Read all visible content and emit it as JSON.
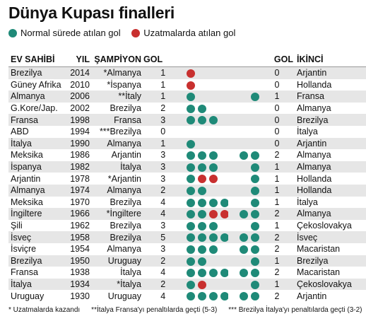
{
  "title": "Dünya Kupası finalleri",
  "colors": {
    "normal": "#1f8a78",
    "extra": "#c8302f"
  },
  "legend": {
    "normal": "Normal sürede atılan gol",
    "extra": "Uzatmalarda atılan gol"
  },
  "headers": {
    "host": "EV SAHİBİ",
    "year": "YIL",
    "champion": "ŞAMPİYON",
    "home_goals": "GOL",
    "away_goals": "GOL",
    "runner_up": "İKİNCİ"
  },
  "chart_data": {
    "type": "table",
    "title": "Dünya Kupası finalleri",
    "legend": [
      "Normal sürede atılan gol",
      "Uzatmalarda atılan gol"
    ],
    "rows": [
      {
        "host": "Brezilya",
        "year": "2014",
        "champion": "*Almanya",
        "champion_goals": 1,
        "champion_normal": 0,
        "champion_extra": 1,
        "runner_up_goals": 0,
        "runner_up_normal": 0,
        "runner_up_extra": 0,
        "runner_up": "Arjantin"
      },
      {
        "host": "Güney Afrika",
        "year": "2010",
        "champion": "*İspanya",
        "champion_goals": 1,
        "champion_normal": 0,
        "champion_extra": 1,
        "runner_up_goals": 0,
        "runner_up_normal": 0,
        "runner_up_extra": 0,
        "runner_up": "Hollanda"
      },
      {
        "host": "Almanya",
        "year": "2006",
        "champion": "**İtaly",
        "champion_goals": 1,
        "champion_normal": 1,
        "champion_extra": 0,
        "runner_up_goals": 1,
        "runner_up_normal": 1,
        "runner_up_extra": 0,
        "runner_up": "Fransa"
      },
      {
        "host": "G.Kore/Jap.",
        "year": "2002",
        "champion": "Brezilya",
        "champion_goals": 2,
        "champion_normal": 2,
        "champion_extra": 0,
        "runner_up_goals": 0,
        "runner_up_normal": 0,
        "runner_up_extra": 0,
        "runner_up": "Almanya"
      },
      {
        "host": "Fransa",
        "year": "1998",
        "champion": "Fransa",
        "champion_goals": 3,
        "champion_normal": 3,
        "champion_extra": 0,
        "runner_up_goals": 0,
        "runner_up_normal": 0,
        "runner_up_extra": 0,
        "runner_up": "Brezilya"
      },
      {
        "host": "ABD",
        "year": "1994",
        "champion": "***Brezilya",
        "champion_goals": 0,
        "champion_normal": 0,
        "champion_extra": 0,
        "runner_up_goals": 0,
        "runner_up_normal": 0,
        "runner_up_extra": 0,
        "runner_up": "İtalya"
      },
      {
        "host": "İtalya",
        "year": "1990",
        "champion": "Almanya",
        "champion_goals": 1,
        "champion_normal": 1,
        "champion_extra": 0,
        "runner_up_goals": 0,
        "runner_up_normal": 0,
        "runner_up_extra": 0,
        "runner_up": "Arjantin"
      },
      {
        "host": "Meksika",
        "year": "1986",
        "champion": "Arjantin",
        "champion_goals": 3,
        "champion_normal": 3,
        "champion_extra": 0,
        "runner_up_goals": 2,
        "runner_up_normal": 2,
        "runner_up_extra": 0,
        "runner_up": "Almanya"
      },
      {
        "host": "İspanya",
        "year": "1982",
        "champion": "İtalya",
        "champion_goals": 3,
        "champion_normal": 3,
        "champion_extra": 0,
        "runner_up_goals": 1,
        "runner_up_normal": 1,
        "runner_up_extra": 0,
        "runner_up": "Almanya"
      },
      {
        "host": "Arjantin",
        "year": "1978",
        "champion": "*Arjantin",
        "champion_goals": 3,
        "champion_normal": 1,
        "champion_extra": 2,
        "runner_up_goals": 1,
        "runner_up_normal": 1,
        "runner_up_extra": 0,
        "runner_up": "Hollanda"
      },
      {
        "host": "Almanya",
        "year": "1974",
        "champion": "Almanya",
        "champion_goals": 2,
        "champion_normal": 2,
        "champion_extra": 0,
        "runner_up_goals": 1,
        "runner_up_normal": 1,
        "runner_up_extra": 0,
        "runner_up": "Hollanda"
      },
      {
        "host": "Meksika",
        "year": "1970",
        "champion": "Brezilya",
        "champion_goals": 4,
        "champion_normal": 4,
        "champion_extra": 0,
        "runner_up_goals": 1,
        "runner_up_normal": 1,
        "runner_up_extra": 0,
        "runner_up": "İtalya"
      },
      {
        "host": "İngiltere",
        "year": "1966",
        "champion": "*İngiltere",
        "champion_goals": 4,
        "champion_normal": 2,
        "champion_extra": 2,
        "runner_up_goals": 2,
        "runner_up_normal": 2,
        "runner_up_extra": 0,
        "runner_up": "Almanya"
      },
      {
        "host": "Şili",
        "year": "1962",
        "champion": "Brezilya",
        "champion_goals": 3,
        "champion_normal": 3,
        "champion_extra": 0,
        "runner_up_goals": 1,
        "runner_up_normal": 1,
        "runner_up_extra": 0,
        "runner_up": "Çekoslovakya"
      },
      {
        "host": "İsveç",
        "year": "1958",
        "champion": "Brezilya",
        "champion_goals": 5,
        "champion_normal": 5,
        "champion_extra": 0,
        "runner_up_goals": 2,
        "runner_up_normal": 2,
        "runner_up_extra": 0,
        "runner_up": "İsveç"
      },
      {
        "host": "İsviçre",
        "year": "1954",
        "champion": "Almanya",
        "champion_goals": 3,
        "champion_normal": 3,
        "champion_extra": 0,
        "runner_up_goals": 2,
        "runner_up_normal": 2,
        "runner_up_extra": 0,
        "runner_up": "Macaristan"
      },
      {
        "host": "Brezilya",
        "year": "1950",
        "champion": "Uruguay",
        "champion_goals": 2,
        "champion_normal": 2,
        "champion_extra": 0,
        "runner_up_goals": 1,
        "runner_up_normal": 1,
        "runner_up_extra": 0,
        "runner_up": "Brezilya"
      },
      {
        "host": "Fransa",
        "year": "1938",
        "champion": "İtalya",
        "champion_goals": 4,
        "champion_normal": 4,
        "champion_extra": 0,
        "runner_up_goals": 2,
        "runner_up_normal": 2,
        "runner_up_extra": 0,
        "runner_up": "Macaristan"
      },
      {
        "host": "İtalya",
        "year": "1934",
        "champion": "*İtalya",
        "champion_goals": 2,
        "champion_normal": 1,
        "champion_extra": 1,
        "runner_up_goals": 1,
        "runner_up_normal": 1,
        "runner_up_extra": 0,
        "runner_up": "Çekoslovakya"
      },
      {
        "host": "Uruguay",
        "year": "1930",
        "champion": "Uruguay",
        "champion_goals": 4,
        "champion_normal": 4,
        "champion_extra": 0,
        "runner_up_goals": 2,
        "runner_up_normal": 2,
        "runner_up_extra": 0,
        "runner_up": "Arjantin"
      }
    ]
  },
  "footnotes": [
    "* Uzatmalarda kazandı",
    "**İtalya Fransa'yı penaltılarda geçti (5-3)",
    "*** Brezilya İtalya'yı penaltılarda geçti (3-2)"
  ]
}
